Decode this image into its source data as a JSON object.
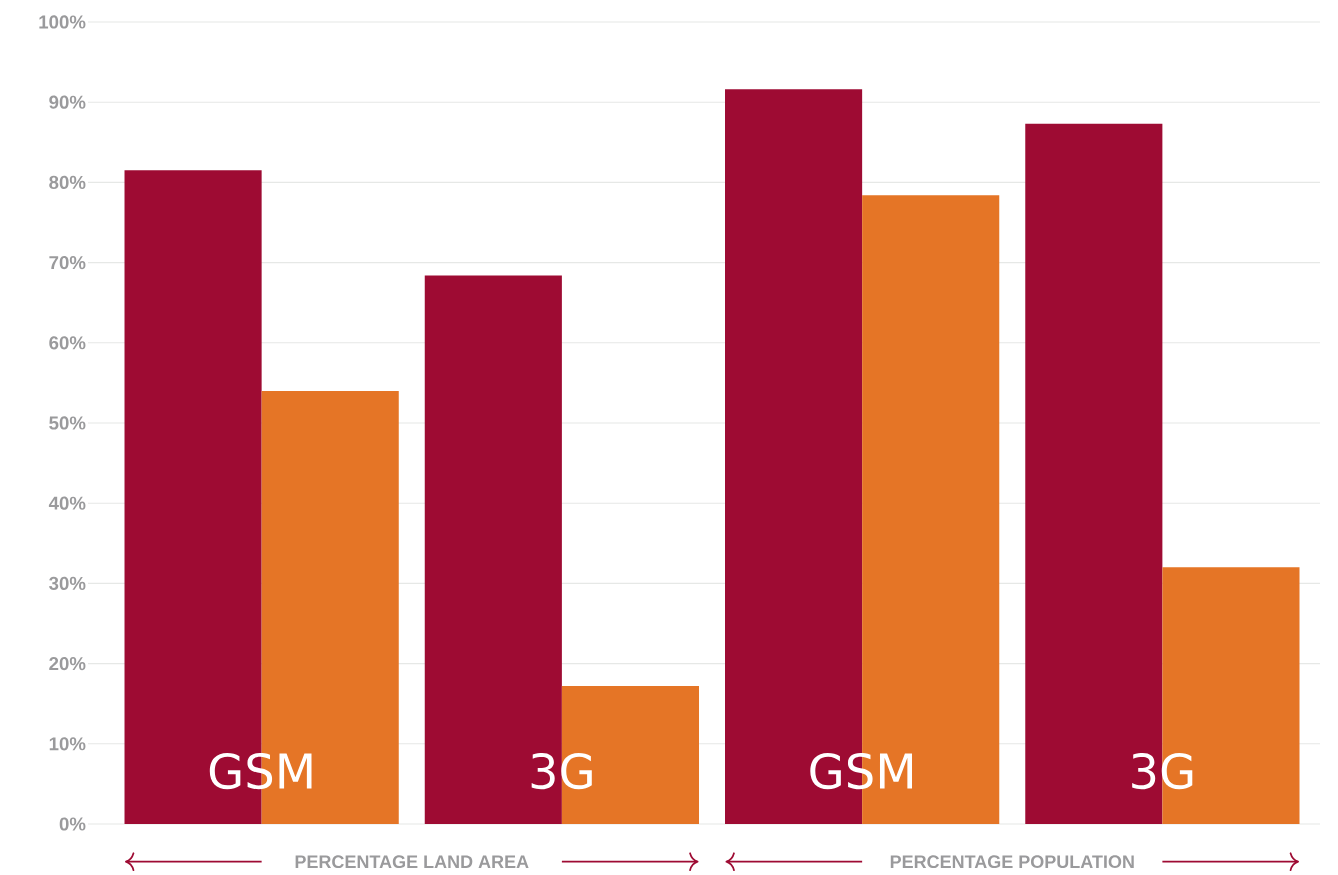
{
  "chart_data": {
    "type": "bar",
    "categories": [
      "GSM",
      "3G",
      "GSM",
      "3G"
    ],
    "series": [
      {
        "color": "#9e0b33",
        "values": [
          81.5,
          68.4,
          91.6,
          87.3
        ]
      },
      {
        "color": "#e57526",
        "values": [
          54.0,
          17.2,
          78.4,
          32.0
        ]
      }
    ],
    "ylim": [
      0,
      100
    ],
    "yticks": [
      {
        "value": 0,
        "label": "0%"
      },
      {
        "value": 10,
        "label": "10%"
      },
      {
        "value": 20,
        "label": "20%"
      },
      {
        "value": 30,
        "label": "30%"
      },
      {
        "value": 40,
        "label": "40%"
      },
      {
        "value": 50,
        "label": "50%"
      },
      {
        "value": 60,
        "label": "60%"
      },
      {
        "value": 70,
        "label": "70%"
      },
      {
        "value": 80,
        "label": "80%"
      },
      {
        "value": 90,
        "label": "90%"
      },
      {
        "value": 100,
        "label": "100%"
      }
    ],
    "grid": "y",
    "annotations": [
      "PERCENTAGE LAND AREA",
      "PERCENTAGE POPULATION"
    ]
  }
}
